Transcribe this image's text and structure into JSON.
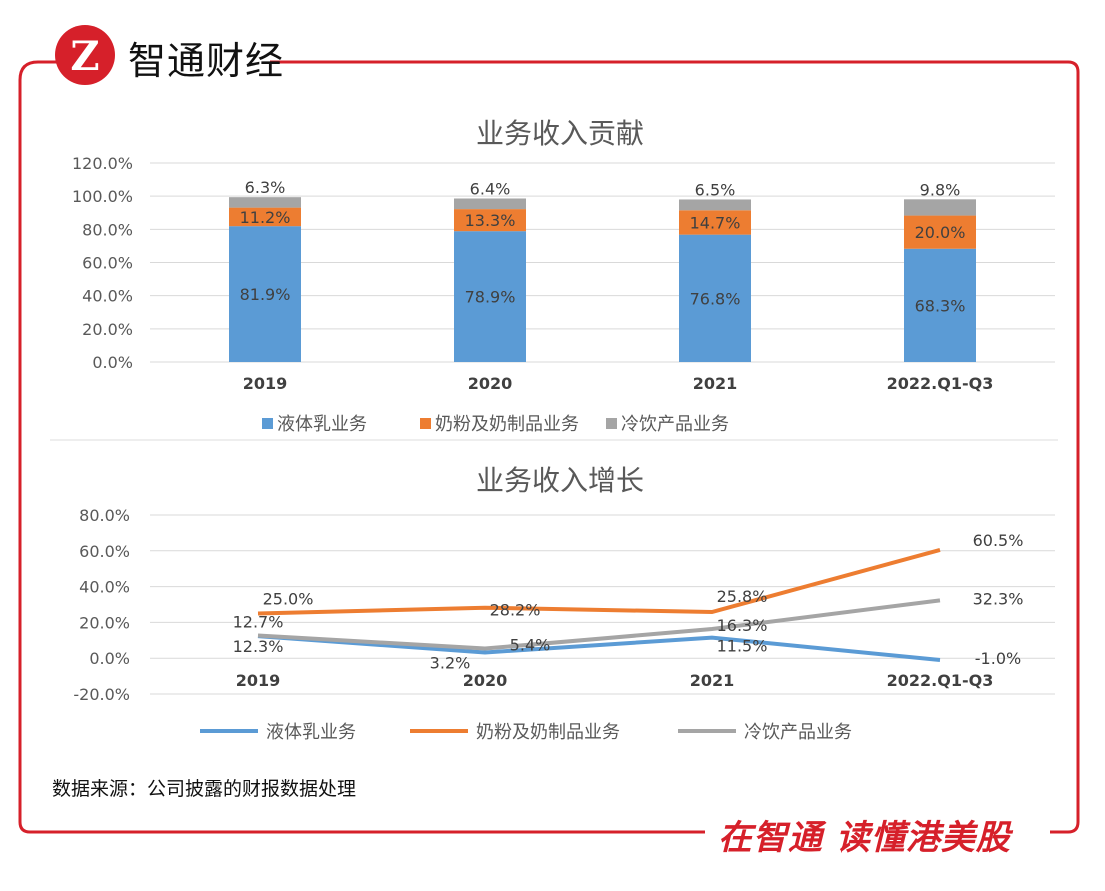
{
  "brand": {
    "name": "智通财经",
    "slogan": "在智通 读懂港美股",
    "logo_letter": "Z",
    "accent": "#d6202a"
  },
  "source": "数据来源：公司披露的财报数据处理",
  "chart_data": [
    {
      "type": "bar",
      "stacked": true,
      "title": "业务收入贡献",
      "categories": [
        "2019",
        "2020",
        "2021",
        "2022.Q1-Q3"
      ],
      "ylim": [
        0,
        120
      ],
      "yticks": [
        "0.0%",
        "20.0%",
        "40.0%",
        "60.0%",
        "80.0%",
        "100.0%",
        "120.0%"
      ],
      "grid": true,
      "legend": "bottom",
      "series": [
        {
          "name": "液体乳业务",
          "color": "#5b9bd5",
          "values": [
            81.9,
            78.9,
            76.8,
            68.3
          ],
          "labels": [
            "81.9%",
            "78.9%",
            "76.8%",
            "68.3%"
          ]
        },
        {
          "name": "奶粉及奶制品业务",
          "color": "#ed7d31",
          "values": [
            11.2,
            13.3,
            14.7,
            20.0
          ],
          "labels": [
            "11.2%",
            "13.3%",
            "14.7%",
            "20.0%"
          ]
        },
        {
          "name": "冷饮产品业务",
          "color": "#a5a5a5",
          "values": [
            6.3,
            6.4,
            6.5,
            9.8
          ],
          "labels": [
            "6.3%",
            "6.4%",
            "6.5%",
            "9.8%"
          ]
        }
      ]
    },
    {
      "type": "line",
      "title": "业务收入增长",
      "categories": [
        "2019",
        "2020",
        "2021",
        "2022.Q1-Q3"
      ],
      "ylim": [
        -20,
        80
      ],
      "yticks": [
        "-20.0%",
        "0.0%",
        "20.0%",
        "40.0%",
        "60.0%",
        "80.0%"
      ],
      "grid": true,
      "legend": "bottom",
      "series": [
        {
          "name": "液体乳业务",
          "color": "#5b9bd5",
          "values": [
            12.3,
            3.2,
            11.5,
            -1.0
          ],
          "labels": [
            "12.3%",
            "3.2%",
            "11.5%",
            "-1.0%"
          ]
        },
        {
          "name": "奶粉及奶制品业务",
          "color": "#ed7d31",
          "values": [
            25.0,
            28.2,
            25.8,
            60.5
          ],
          "labels": [
            "25.0%",
            "28.2%",
            "25.8%",
            "60.5%"
          ]
        },
        {
          "name": "冷饮产品业务",
          "color": "#a5a5a5",
          "values": [
            12.7,
            5.4,
            16.3,
            32.3
          ],
          "labels": [
            "12.7%",
            "5.4%",
            "16.3%",
            "32.3%"
          ]
        }
      ]
    }
  ]
}
